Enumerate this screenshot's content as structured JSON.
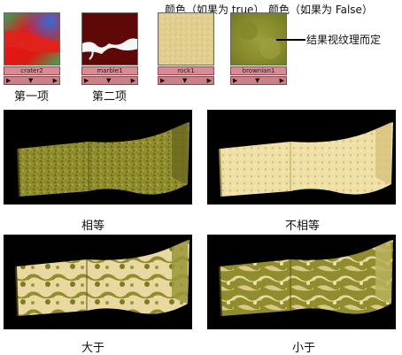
{
  "header": {
    "true_label": "颜色（如果为 true）",
    "false_label": "颜色（如果为 False）"
  },
  "swatches": [
    {
      "name": "crater2",
      "caption": "第一项"
    },
    {
      "name": "marble1",
      "caption": "第二项"
    },
    {
      "name": "rock1",
      "caption": ""
    },
    {
      "name": "brownian1",
      "caption": ""
    }
  ],
  "annotation": "结果视纹理而定",
  "panels": [
    {
      "caption": "相等"
    },
    {
      "caption": "不相等"
    },
    {
      "caption": "大于"
    },
    {
      "caption": "小于"
    }
  ],
  "colors": {
    "texture_olive": "#8a8a2a",
    "texture_cream": "#e8d49a",
    "swatch_bar": "#d88b92",
    "panel_background": "#000000"
  }
}
